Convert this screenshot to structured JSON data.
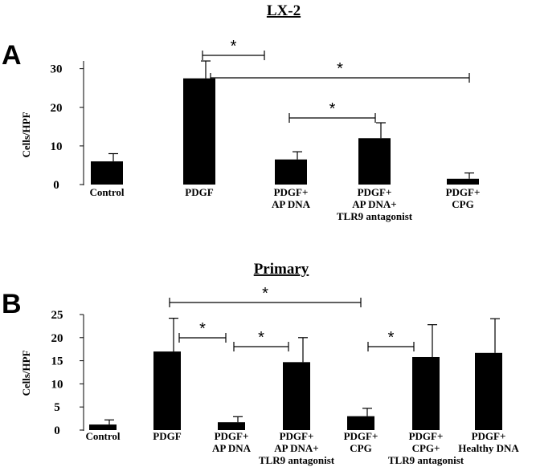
{
  "chart_data": [
    {
      "type": "bar",
      "panel_label": "A",
      "title": "LX-2",
      "ylabel": "Cells/HPF",
      "ylim": [
        0,
        32
      ],
      "yticks": [
        "0",
        "10",
        "20",
        "30"
      ],
      "categories": [
        [
          "Control"
        ],
        [
          "PDGF"
        ],
        [
          "PDGF+",
          "AP DNA"
        ],
        [
          "PDGF+",
          "AP DNA+",
          "TLR9 antagonist"
        ],
        [
          "PDGF+",
          "CPG"
        ]
      ],
      "values": [
        6,
        27.5,
        6.5,
        12,
        1.5
      ],
      "errors": [
        2,
        4.5,
        2,
        4,
        1.5
      ],
      "significance": [
        {
          "from": 1,
          "to": 2,
          "label": "*"
        },
        {
          "from": 1,
          "to": 4,
          "label": "*"
        },
        {
          "from": 2,
          "to": 3,
          "label": "*"
        }
      ]
    },
    {
      "type": "bar",
      "panel_label": "B",
      "title": "Primary",
      "ylabel": "Cells/HPF",
      "ylim": [
        0,
        25
      ],
      "yticks": [
        "0",
        "5",
        "10",
        "15",
        "20",
        "25"
      ],
      "categories": [
        [
          "Control"
        ],
        [
          "PDGF"
        ],
        [
          "PDGF+",
          "AP DNA"
        ],
        [
          "PDGF+",
          "AP DNA+",
          "TLR9 antagonist"
        ],
        [
          "PDGF+",
          "CPG"
        ],
        [
          "PDGF+",
          "CPG+",
          "TLR9 antagonist"
        ],
        [
          "PDGF+",
          "Healthy DNA"
        ]
      ],
      "values": [
        1.2,
        17,
        1.7,
        14.7,
        3,
        15.8,
        16.7
      ],
      "errors": [
        1,
        7.2,
        1.2,
        5.3,
        1.7,
        7,
        7.4
      ],
      "significance": [
        {
          "from": 1,
          "to": 4,
          "label": "*"
        },
        {
          "from": 1,
          "to": 2,
          "label": "*"
        },
        {
          "from": 2,
          "to": 3,
          "label": "*"
        },
        {
          "from": 4,
          "to": 5,
          "label": "*"
        }
      ]
    }
  ]
}
